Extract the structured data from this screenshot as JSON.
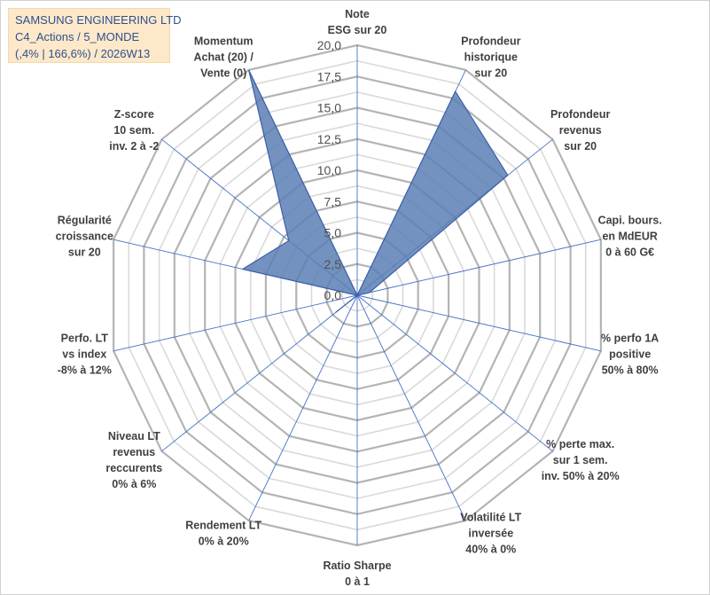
{
  "header": {
    "lines": [
      "SAMSUNG ENGINEERING LTD",
      "C4_Actions / 5_MONDE",
      "(,4% | 166,6%) / 2026W13"
    ]
  },
  "colors": {
    "series_fill": "#5b7fb4",
    "series_stroke": "#3b5fa8",
    "spoke": "#4472c4",
    "ring": "#bfbfbf",
    "title_bg": "#fde9c9",
    "title_text": "#2f4f8f"
  },
  "chart_data": {
    "type": "radar",
    "r_min": 0,
    "r_max": 20,
    "tick_step": 2.5,
    "tick_labels": [
      "0,0",
      "2,5",
      "5,0",
      "7,5",
      "10,0",
      "12,5",
      "15,0",
      "17,5",
      "20,0"
    ],
    "categories": [
      [
        "Note",
        "ESG sur 20"
      ],
      [
        "Profondeur",
        "historique",
        "sur 20"
      ],
      [
        "Profondeur",
        "revenus",
        "sur 20"
      ],
      [
        "Capi. bours.",
        "en MdEUR",
        "0 à 60 G€"
      ],
      [
        "% perfo 1A",
        "positive",
        "50% à 80%"
      ],
      [
        "% perte max.",
        "sur 1 sem.",
        "inv. 50% à 20%"
      ],
      [
        "Volatilité LT",
        "inversée",
        "40% à 0%"
      ],
      [
        "Ratio Sharpe",
        "0 à 1"
      ],
      [
        "Rendement LT",
        "0% à 20%"
      ],
      [
        "Niveau LT",
        "revenus",
        "reccurents",
        "0% à 6%"
      ],
      [
        "Perfo. LT",
        "vs index",
        "-8% à 12%"
      ],
      [
        "Régularité",
        "croissance",
        "sur 20"
      ],
      [
        "Z-score",
        "10 sem.",
        "inv. 2 à -2"
      ],
      [
        "Momentum",
        "Achat (20) /",
        "Vente (0)"
      ]
    ],
    "series": [
      {
        "name": "SAMSUNG ENGINEERING LTD",
        "values": [
          0,
          18.1,
          15.4,
          1.0,
          0,
          0,
          0,
          0,
          0,
          2.2,
          0,
          9.4,
          7.0,
          20.0
        ]
      }
    ]
  }
}
